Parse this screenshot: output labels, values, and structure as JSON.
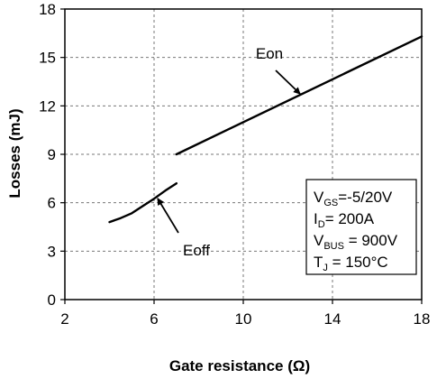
{
  "chart_data": {
    "type": "line",
    "xlabel": "Gate resistance (Ω)",
    "ylabel": "Losses (mJ)",
    "xlim": [
      2,
      18
    ],
    "ylim": [
      0,
      18
    ],
    "xticks": [
      "2",
      "6",
      "10",
      "14",
      "18"
    ],
    "yticks": [
      "0",
      "3",
      "6",
      "9",
      "12",
      "15",
      "18"
    ],
    "grid": true,
    "series": [
      {
        "name": "Eon",
        "x": [
          7,
          18
        ],
        "y": [
          9.0,
          16.3
        ]
      },
      {
        "name": "Eoff",
        "x": [
          4,
          4.5,
          5,
          5.5,
          6,
          6.5,
          7
        ],
        "y": [
          4.8,
          5.05,
          5.35,
          5.8,
          6.25,
          6.75,
          7.2
        ]
      }
    ],
    "annotations": [
      {
        "text": "Eon",
        "target_series": "Eon"
      },
      {
        "text": "Eoff",
        "target_series": "Eoff"
      }
    ],
    "conditions_box": {
      "line1": {
        "main": "V",
        "sub": "GS",
        "rest": "=-5/20V"
      },
      "line2": {
        "main": "I",
        "sub": "D",
        "rest": "= 200A"
      },
      "line3": {
        "main": "V",
        "sub": "BUS",
        "rest": " = 900V"
      },
      "line4": {
        "main": "T",
        "sub": "J",
        "rest": " = 150°C"
      }
    }
  }
}
